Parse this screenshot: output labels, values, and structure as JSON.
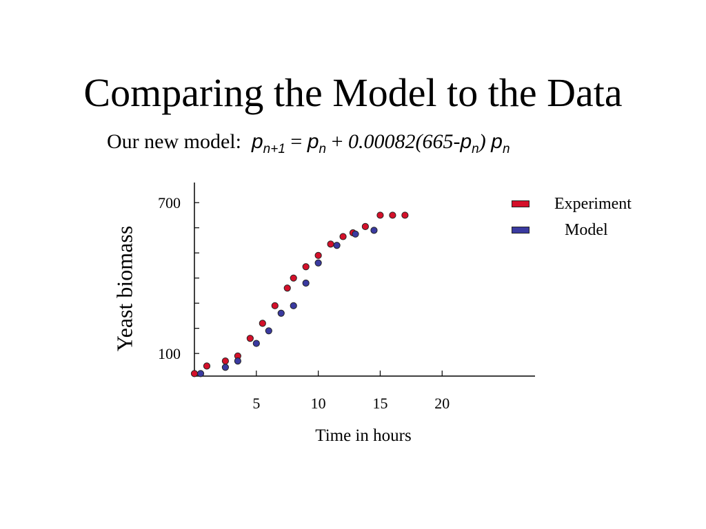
{
  "slide": {
    "title": "Comparing the Model to the Data",
    "formula": {
      "prefix": "Our new model:",
      "p": "p",
      "sub_n1": "n+1",
      "sub_n": "n",
      "eq": "=",
      "plus": "+",
      "coef": "0.00082(665-",
      "close": ")"
    }
  },
  "colors": {
    "experiment": "#d4102a",
    "model": "#3a3aa0"
  },
  "chart_data": {
    "type": "scatter",
    "xlabel": "Time in  hours",
    "ylabel": "Yeast biomass",
    "x_ticks": [
      5,
      10,
      15,
      20
    ],
    "y_ticks": [
      100,
      700
    ],
    "xlim": [
      0,
      27.5
    ],
    "ylim": [
      10,
      780
    ],
    "legend_position": "top-right",
    "series": [
      {
        "name": "Experiment",
        "color": "#d4102a",
        "x": [
          0,
          1,
          2.5,
          3.5,
          4.5,
          5.5,
          6.5,
          7.5,
          8,
          9,
          10,
          11,
          12,
          12.8,
          13.8,
          15,
          16,
          17
        ],
        "y": [
          20,
          50,
          70,
          90,
          160,
          220,
          290,
          360,
          400,
          445,
          490,
          535,
          565,
          580,
          605,
          650,
          650,
          650
        ]
      },
      {
        "name": "Model",
        "color": "#3a3aa0",
        "x": [
          0.5,
          2.5,
          3.5,
          5,
          6,
          7,
          8,
          9,
          10,
          11.5,
          13,
          14.5
        ],
        "y": [
          20,
          45,
          70,
          140,
          190,
          260,
          290,
          380,
          460,
          530,
          575,
          590
        ]
      }
    ]
  }
}
